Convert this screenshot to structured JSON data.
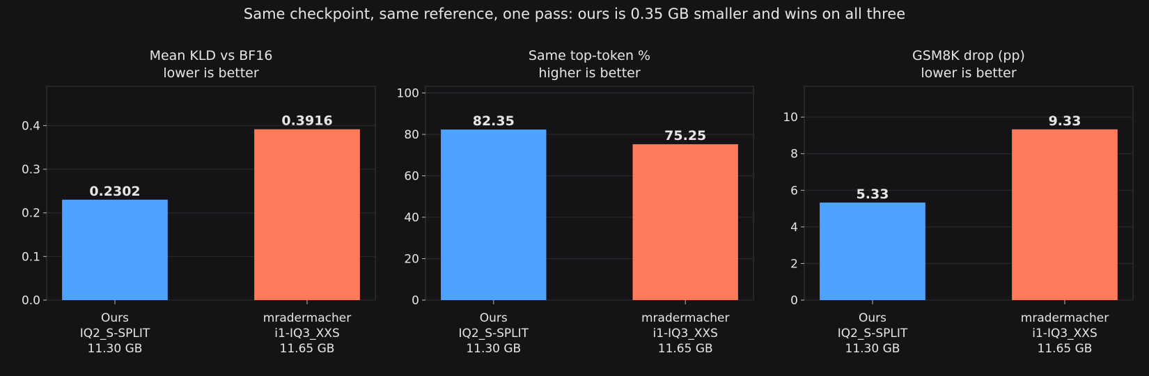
{
  "title": "Same checkpoint, same reference, one pass: ours is 0.35 GB smaller and wins on all three",
  "chart_data": [
    {
      "type": "bar",
      "title": "Mean KLD vs BF16",
      "subtitle": "lower is better",
      "categories": [
        [
          "Ours",
          "IQ2_S-SPLIT",
          "11.30 GB"
        ],
        [
          "mradermacher",
          "i1-IQ3_XXS",
          "11.65 GB"
        ]
      ],
      "values": [
        0.2302,
        0.3916
      ],
      "colors": [
        "#4da3ff",
        "#ff7b5a"
      ],
      "ylim": [
        0,
        0.49
      ],
      "yticks": [
        {
          "value": 0,
          "label": "0.0"
        },
        0.1,
        0.2,
        0.3,
        0.4
      ],
      "grid": true
    },
    {
      "type": "bar",
      "title": "Same top-token %",
      "subtitle": "higher is better",
      "categories": [
        [
          "Ours",
          "IQ2_S-SPLIT",
          "11.30 GB"
        ],
        [
          "mradermacher",
          "i1-IQ3_XXS",
          "11.65 GB"
        ]
      ],
      "values": [
        82.35,
        75.25
      ],
      "colors": [
        "#4da3ff",
        "#ff7b5a"
      ],
      "ylim": [
        0,
        103.2
      ],
      "yticks": [
        0,
        20,
        40,
        60,
        80,
        100
      ],
      "grid": true
    },
    {
      "type": "bar",
      "title": "GSM8K drop (pp)",
      "subtitle": "lower is better",
      "categories": [
        [
          "Ours",
          "IQ2_S-SPLIT",
          "11.30 GB"
        ],
        [
          "mradermacher",
          "i1-IQ3_XXS",
          "11.65 GB"
        ]
      ],
      "values": [
        5.33,
        9.33
      ],
      "colors": [
        "#4da3ff",
        "#ff7b5a"
      ],
      "ylim": [
        0,
        11.68
      ],
      "yticks": [
        0,
        2,
        4,
        6,
        8,
        10
      ],
      "grid": true
    }
  ]
}
